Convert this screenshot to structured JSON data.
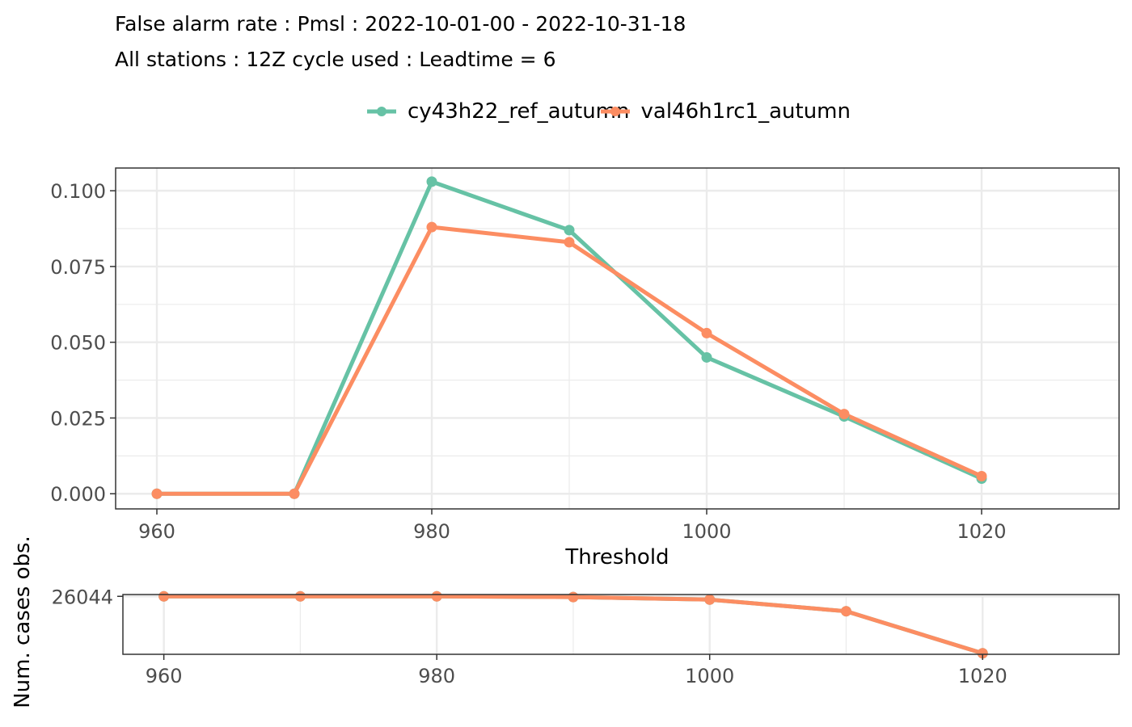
{
  "title": "False alarm rate : Pmsl : 2022-10-01-00 - 2022-10-31-18",
  "subtitle": "All stations : 12Z cycle used : Leadtime = 6",
  "colors": {
    "series_1": "#66c2a5",
    "series_2": "#fc8d62",
    "grid": "#ebebeb",
    "panel_border": "#333333",
    "tick_text": "#4d4d4d"
  },
  "chart_data": [
    {
      "type": "line",
      "xlabel": "Threshold",
      "ylabel": "",
      "xlim": [
        957,
        1030
      ],
      "ylim": [
        -0.005,
        0.1075
      ],
      "x_ticks": [
        "960",
        "980",
        "1000",
        "1020"
      ],
      "y_ticks": [
        "0.000",
        "0.025",
        "0.050",
        "0.075",
        "0.100"
      ],
      "grid": true,
      "legend_position": "top",
      "x": [
        960,
        970,
        980,
        990,
        1000,
        1010,
        1020
      ],
      "series": [
        {
          "name": "cy43h22_ref_autumn",
          "values": [
            0,
            0,
            0.103,
            0.087,
            0.045,
            0.0255,
            0.005
          ]
        },
        {
          "name": "val46h1rc1_autumn",
          "values": [
            0,
            0,
            0.088,
            0.083,
            0.053,
            0.0263,
            0.0058
          ]
        }
      ]
    },
    {
      "type": "line",
      "xlabel": "",
      "ylabel": "Num. cases obs.",
      "xlim": [
        957,
        1030
      ],
      "ylim": [
        24900,
        26080
      ],
      "x_ticks": [
        "960",
        "980",
        "1000",
        "1020"
      ],
      "y_ticks": [
        "26044"
      ],
      "grid": true,
      "x": [
        960,
        970,
        980,
        990,
        1000,
        1010,
        1020
      ],
      "series": [
        {
          "values": [
            26044,
            26044,
            26044,
            26030,
            25980,
            25750,
            24920
          ]
        },
        {
          "values": [
            26044,
            26044,
            26044,
            26030,
            25980,
            25750,
            24920
          ]
        }
      ]
    }
  ]
}
